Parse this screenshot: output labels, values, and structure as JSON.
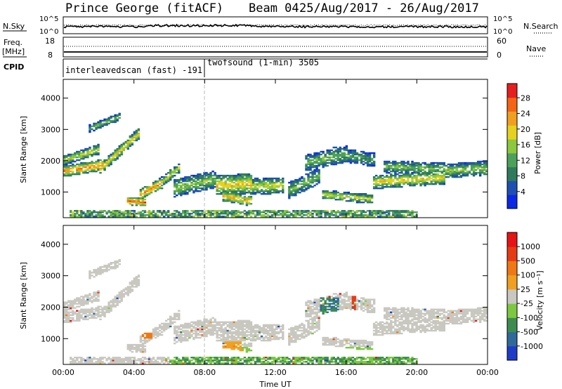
{
  "header": {
    "station": "Prince George (fitACF)",
    "beam": "Beam 04",
    "dates": "25/Aug/2017 - 26/Aug/2017"
  },
  "panels": {
    "noise": {
      "label": "N.Sky",
      "right_label": "N.Search",
      "left_ticks": [
        "10^5",
        "10^0"
      ],
      "right_ticks": [
        "10^5",
        "10^0"
      ]
    },
    "freq": {
      "label_top": "Freq.",
      "label_unit": "[MHz]",
      "right_label": "Nave",
      "left_ticks": [
        "18",
        "8"
      ],
      "right_ticks": [
        "60",
        "0"
      ]
    },
    "cpid": {
      "label": "CPID",
      "segments": [
        {
          "text": "interleavedscan (fast) -191"
        },
        {
          "text": "twofsound (1-min) 3505"
        }
      ]
    }
  },
  "colors": {
    "power": [
      "#0a28e6",
      "#1e50b4",
      "#2f7a5a",
      "#4ca05a",
      "#8cc83c",
      "#e6d21e",
      "#f0a01e",
      "#f56414",
      "#e61e1e"
    ],
    "velocity": [
      "#1e3cc8",
      "#2f6a9a",
      "#3c8c50",
      "#7cc840",
      "#c8c8c0",
      "#f0a020",
      "#f07814",
      "#e63c14",
      "#e61414"
    ]
  },
  "chart_data": [
    {
      "type": "heatmap",
      "name": "Power",
      "ylabel": "Slant Range [km]",
      "ylim": [
        180,
        4600
      ],
      "yticks": [
        "1000",
        "2000",
        "3000",
        "4000"
      ],
      "xticks": [
        "00:00",
        "04:00",
        "08:00",
        "12:00",
        "16:00",
        "20:00",
        "00:00"
      ],
      "xlim_hours": [
        0,
        24
      ],
      "colorbar": {
        "label": "Power [dB]",
        "ticks": [
          "4",
          "8",
          "12",
          "16",
          "20",
          "24",
          "28"
        ],
        "range": [
          0,
          30
        ]
      }
    },
    {
      "type": "heatmap",
      "name": "Velocity",
      "ylabel": "Slant Range [km]",
      "ylim": [
        180,
        4600
      ],
      "yticks": [
        "1000",
        "2000",
        "3000",
        "4000"
      ],
      "xticks": [
        "00:00",
        "04:00",
        "08:00",
        "12:00",
        "16:00",
        "20:00",
        "00:00"
      ],
      "xlabel": "Time UT",
      "xlim_hours": [
        0,
        24
      ],
      "colorbar": {
        "label": "Velocity [m s⁻¹]",
        "ticks": [
          "1000",
          "500",
          "100",
          "25",
          "-25",
          "-100",
          "-500",
          "-1000"
        ]
      }
    }
  ]
}
